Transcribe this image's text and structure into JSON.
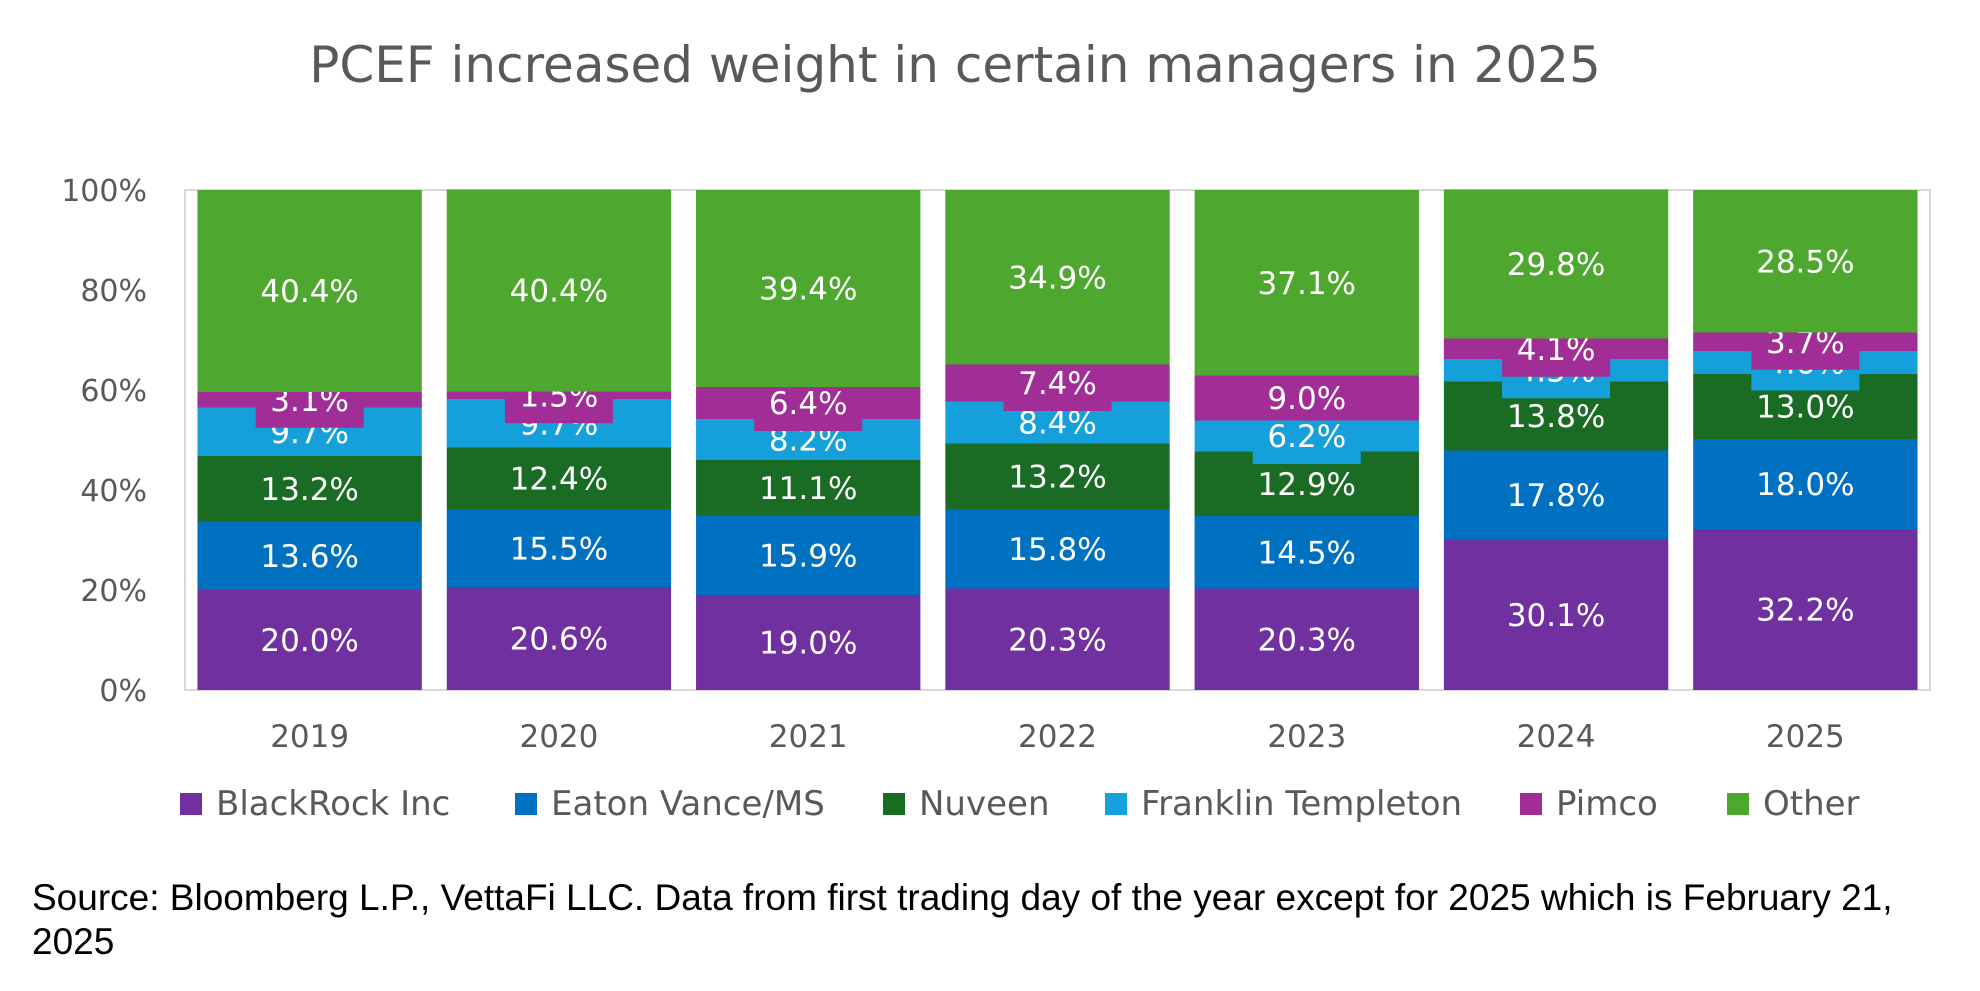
{
  "title": "PCEF increased weight in certain managers in 2025",
  "source": "Source: Bloomberg L.P., VettaFi LLC. Data from first trading day of the year except for 2025 which is February 21, 2025",
  "chart_data": {
    "type": "bar",
    "stacked": true,
    "percent_stacked": true,
    "title": "PCEF increased weight in certain managers in 2025",
    "xlabel": "",
    "ylabel": "",
    "ylim": [
      0,
      100
    ],
    "y_ticks": [
      "0%",
      "20%",
      "40%",
      "60%",
      "80%",
      "100%"
    ],
    "categories": [
      "2019",
      "2020",
      "2021",
      "2022",
      "2023",
      "2024",
      "2025"
    ],
    "series": [
      {
        "name": "BlackRock Inc",
        "color": "#7030A0",
        "values": [
          20.0,
          20.6,
          19.0,
          20.3,
          20.3,
          30.1,
          32.2
        ],
        "labels": [
          "20.0%",
          "20.6%",
          "19.0%",
          "20.3%",
          "20.3%",
          "30.1%",
          "32.2%"
        ]
      },
      {
        "name": "Eaton Vance/MS",
        "color": "#0070C0",
        "values": [
          13.6,
          15.5,
          15.9,
          15.8,
          14.5,
          17.8,
          18.0
        ],
        "labels": [
          "13.6%",
          "15.5%",
          "15.9%",
          "15.8%",
          "14.5%",
          "17.8%",
          "18.0%"
        ]
      },
      {
        "name": "Nuveen",
        "color": "#1A6B24",
        "values": [
          13.2,
          12.4,
          11.1,
          13.2,
          12.9,
          13.8,
          13.0
        ],
        "labels": [
          "13.2%",
          "12.4%",
          "11.1%",
          "13.2%",
          "12.9%",
          "13.8%",
          "13.0%"
        ]
      },
      {
        "name": "Franklin Templeton",
        "color": "#16A0DB",
        "values": [
          9.7,
          9.7,
          8.2,
          8.4,
          6.2,
          4.5,
          4.6
        ],
        "labels": [
          "9.7%",
          "9.7%",
          "8.2%",
          "8.4%",
          "6.2%",
          "4.5%",
          "4.6%"
        ]
      },
      {
        "name": "Pimco",
        "color": "#A12E97",
        "values": [
          3.1,
          1.5,
          6.4,
          7.4,
          9.0,
          4.1,
          3.7
        ],
        "labels": [
          "3.1%",
          "1.5%",
          "6.4%",
          "7.4%",
          "9.0%",
          "4.1%",
          "3.7%"
        ]
      },
      {
        "name": "Other",
        "color": "#4EA72E",
        "values": [
          40.4,
          40.4,
          39.4,
          34.9,
          37.1,
          29.8,
          28.5
        ],
        "labels": [
          "40.4%",
          "40.4%",
          "39.4%",
          "34.9%",
          "37.1%",
          "29.8%",
          "28.5%"
        ]
      }
    ],
    "legend_position": "bottom",
    "grid": false
  }
}
